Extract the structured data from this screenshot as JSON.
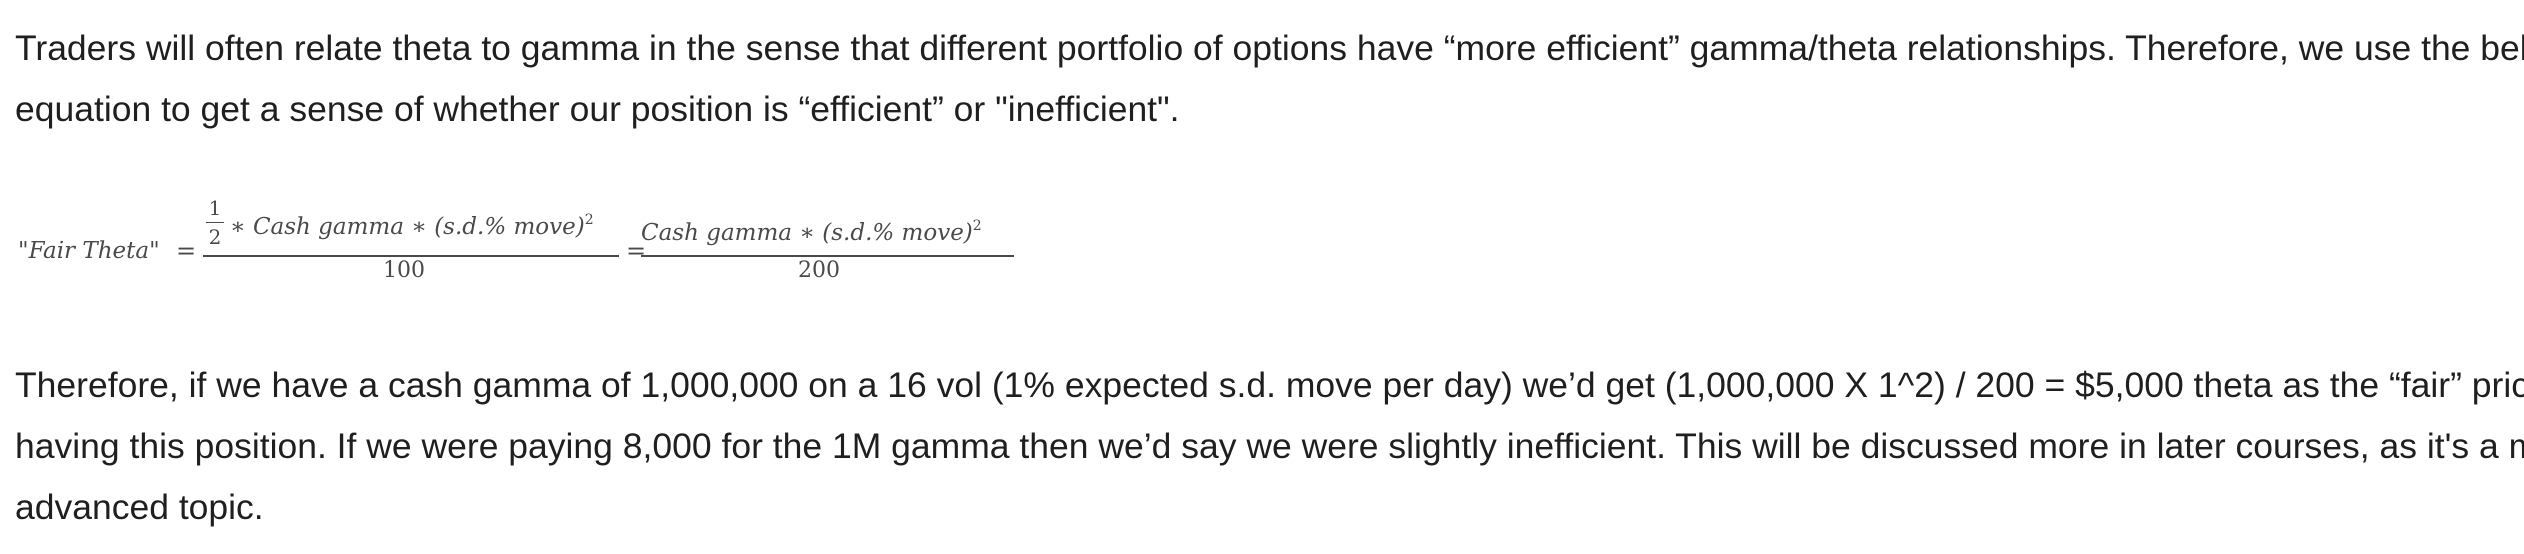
{
  "paragraph1": {
    "line1": "Traders will often relate theta to gamma in the sense that different portfolio of options have “more efficient” gamma/theta relationships. Therefore, we use the below",
    "line2": "equation to get a sense of whether our position is “efficient” or \"inefficient\"."
  },
  "equation": {
    "label": "\"Fair Theta\"",
    "equals": "=",
    "half_numerator": "1",
    "half_denominator": "2",
    "numerator1": "∗ Cash gamma ∗ (s.d.% move)",
    "exponent": "2",
    "denominator1": "100",
    "numerator2": "Cash gamma ∗ (s.d.% move)",
    "denominator2": "200"
  },
  "paragraph2": {
    "line1": "Therefore, if we have a cash gamma of 1,000,000 on a 16 vol (1% expected s.d. move per day) we’d get (1,000,000 X 1^2) / 200 = $5,000 theta as the “fair” price of",
    "line2": "having this position. If we were paying 8,000 for the 1M gamma then we’d say we were slightly inefficient. This will be discussed more in later courses, as it's a more",
    "line3": "advanced topic."
  }
}
